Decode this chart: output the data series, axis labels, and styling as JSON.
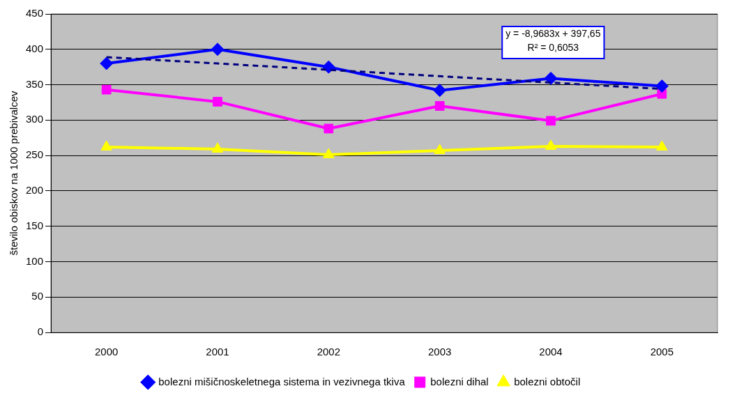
{
  "chart_data": {
    "type": "line",
    "ylabel": "število obiskov na 1000 prebivalcev",
    "categories": [
      "2000",
      "2001",
      "2002",
      "2003",
      "2004",
      "2005"
    ],
    "series": [
      {
        "name": "bolezni mišičnoskeletnega sistema in vezivnega tkiva",
        "color": "#0000ff",
        "marker": "diamond",
        "values": [
          380,
          400,
          375,
          342,
          359,
          348
        ]
      },
      {
        "name": "bolezni dihal",
        "color": "#ff00ff",
        "marker": "square",
        "values": [
          343,
          326,
          288,
          320,
          299,
          337
        ]
      },
      {
        "name": "bolezni obtočil",
        "color": "#ffff00",
        "marker": "triangle",
        "values": [
          262,
          259,
          251,
          257,
          263,
          262
        ]
      },
      {
        "type": "line",
        "color": "#000080",
        "marker": "none",
        "line_style": "dashed",
        "values": [
          389,
          380,
          371,
          362,
          353,
          344
        ]
      }
    ],
    "annotations": [
      "y = -8,9683x + 397,65",
      "R² = 0,6053"
    ],
    "ylim": [
      0,
      450
    ],
    "yticks": [
      0,
      50,
      100,
      150,
      200,
      250,
      300,
      350,
      400,
      450
    ],
    "grid": "y",
    "legend": "bottom"
  }
}
